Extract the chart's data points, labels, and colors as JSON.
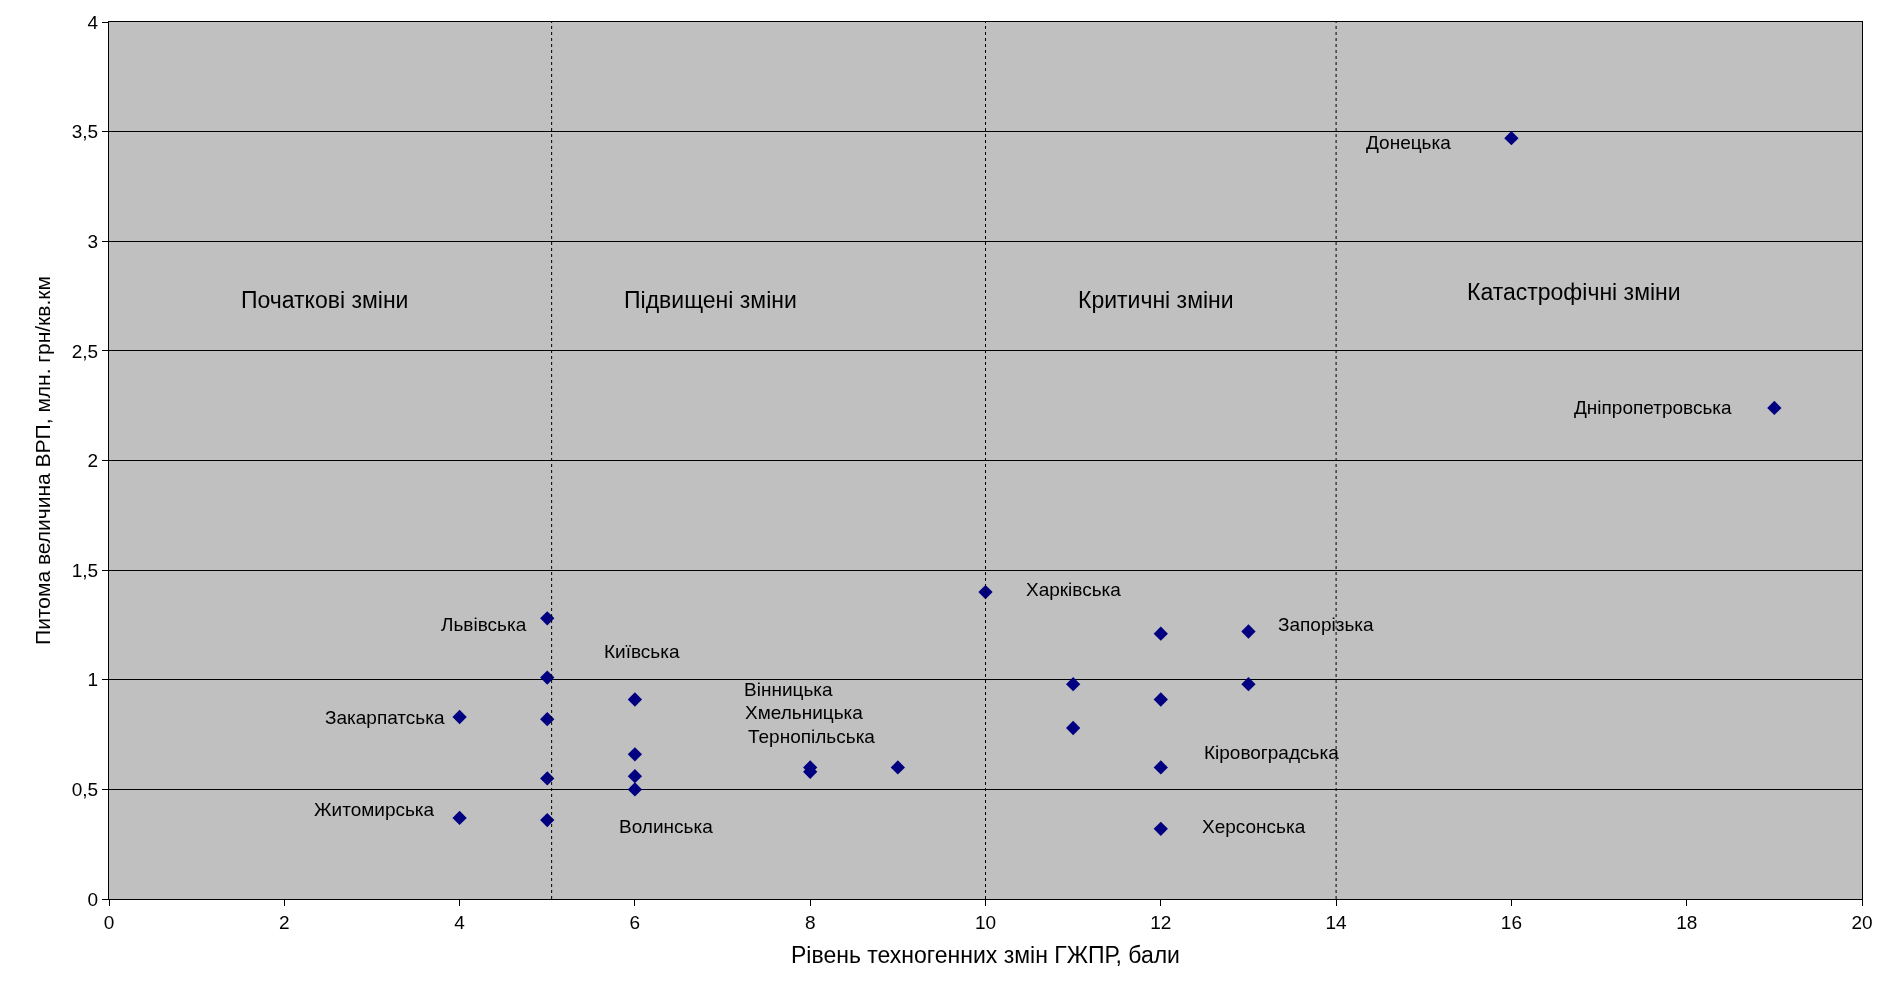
{
  "chart_data": {
    "type": "scatter",
    "xlabel": "Рівень техногенних змін ГЖПР, бали",
    "ylabel": "Питома величина ВРП, млн. грн/кв.км",
    "x": [
      16,
      19,
      10,
      12,
      13,
      11,
      12,
      13,
      11,
      12,
      12,
      5,
      5,
      5,
      5,
      5,
      4,
      4,
      6,
      6,
      6,
      6,
      8,
      8,
      9
    ],
    "series": [
      {
        "color": "#000080",
        "values": [
          3.47,
          2.24,
          1.4,
          1.21,
          1.22,
          0.98,
          0.91,
          0.98,
          0.78,
          0.6,
          0.32,
          1.28,
          1.01,
          0.82,
          0.55,
          0.36,
          0.83,
          0.37,
          0.91,
          0.66,
          0.56,
          0.5,
          0.6,
          0.58,
          0.6
        ]
      }
    ],
    "xlim": [
      0,
      20
    ],
    "xticks": [
      0,
      2,
      4,
      6,
      8,
      10,
      12,
      14,
      16,
      18,
      20
    ],
    "ylim": [
      0,
      4
    ],
    "yticks": [
      {
        "value": 0,
        "label": "0"
      },
      {
        "value": 0.5,
        "label": "0,5"
      },
      {
        "value": 1,
        "label": "1"
      },
      {
        "value": 1.5,
        "label": "1,5"
      },
      {
        "value": 2,
        "label": "2"
      },
      {
        "value": 2.5,
        "label": "2,5"
      },
      {
        "value": 3,
        "label": "3"
      },
      {
        "value": 3.5,
        "label": "3,5"
      },
      {
        "value": 4,
        "label": "4"
      }
    ],
    "grid": "y",
    "marker": "diamond",
    "ref_lines": [
      {
        "axis": "x",
        "value": 5.05,
        "line_style": "dotted"
      },
      {
        "axis": "x",
        "value": 10,
        "line_style": "dotted"
      },
      {
        "axis": "x",
        "value": 14,
        "line_style": "dotted"
      }
    ],
    "annotations": [
      "Початкові зміни",
      "Підвищені зміни",
      "Критичні зміни",
      "Катастрофічні зміни",
      "Донецька",
      "Дніпропетровська",
      "Харківська",
      "Запорізька",
      "Кіровоградська",
      "Херсонська",
      "Львівська",
      "Закарпатська",
      "Житомирська",
      "Київська",
      "Вінницька",
      "Хмельницька",
      "Тернопільська",
      "Волинська"
    ]
  }
}
